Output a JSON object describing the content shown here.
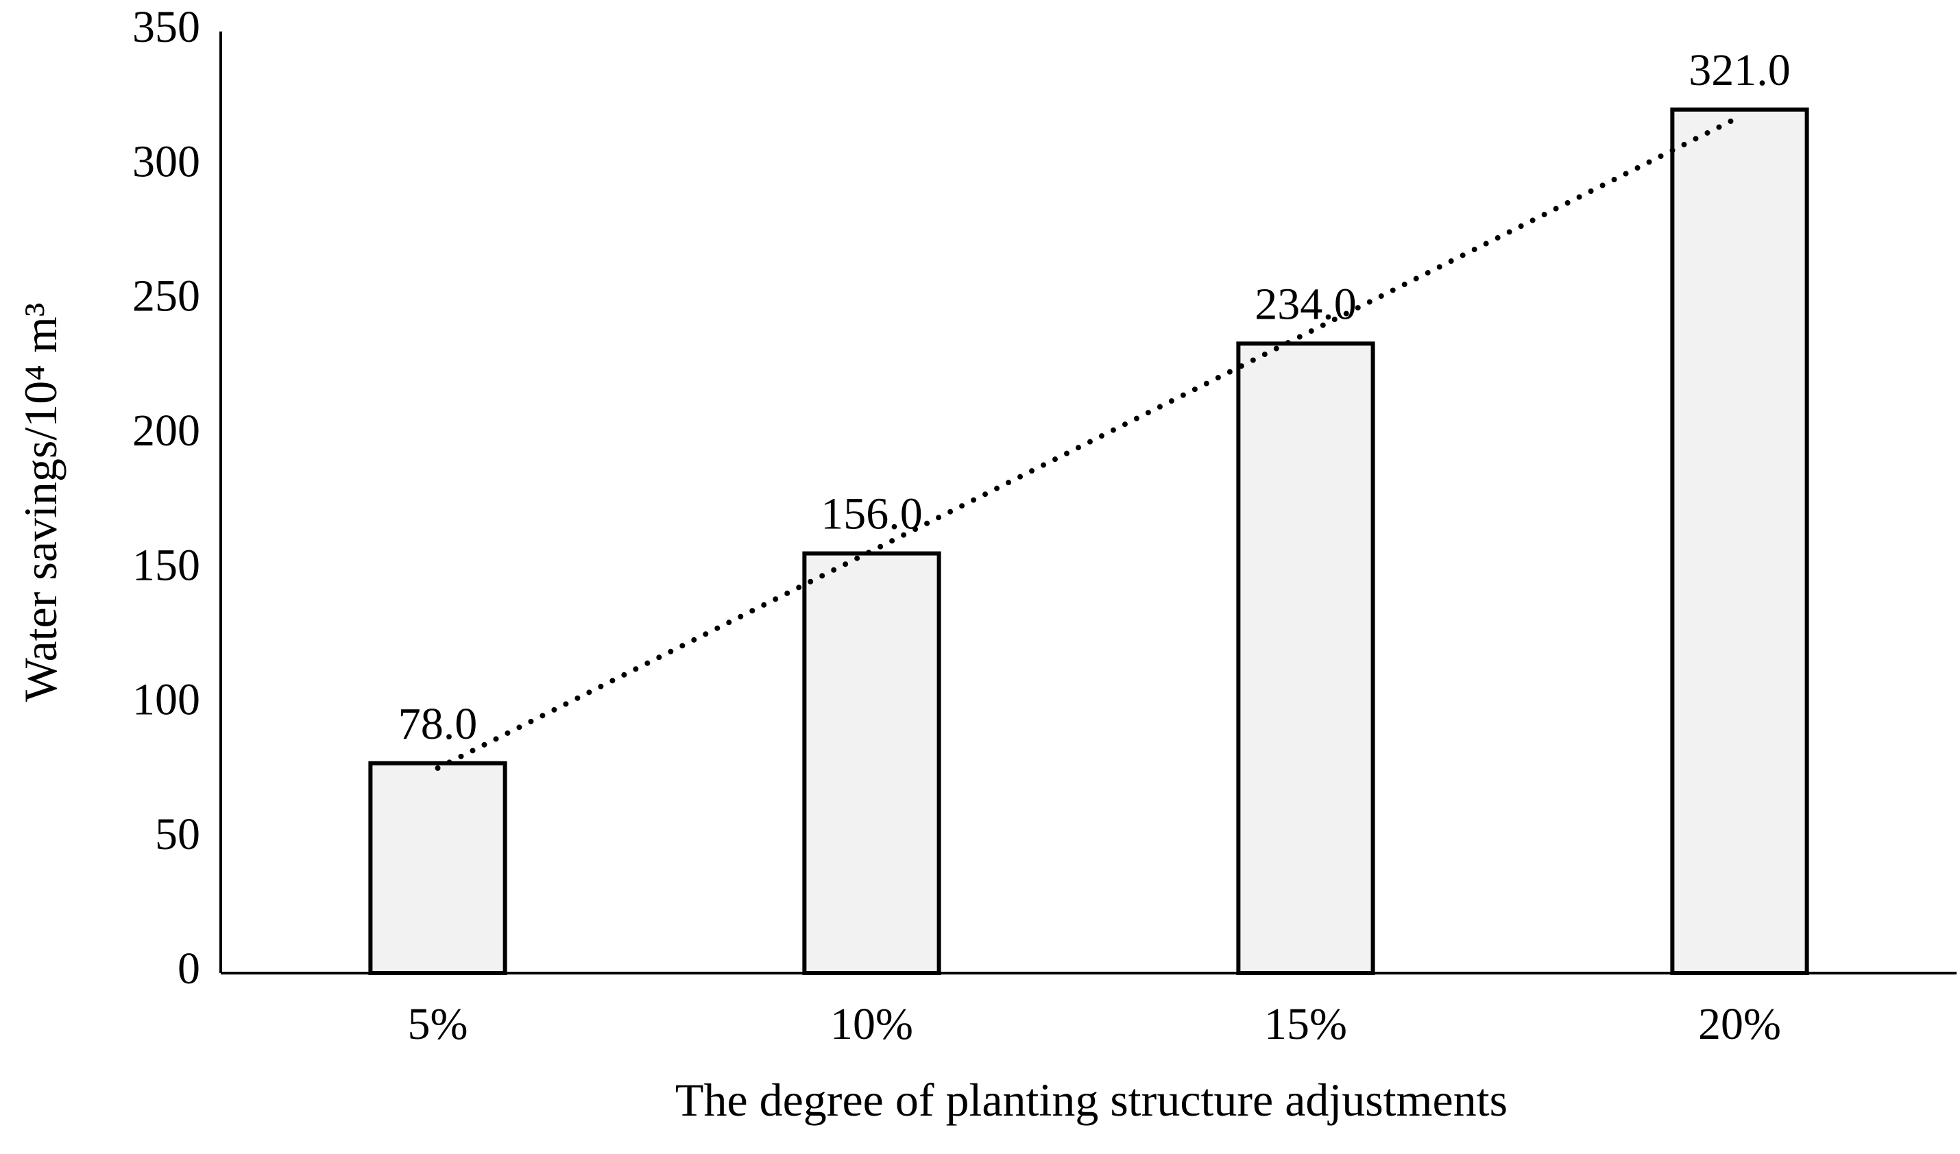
{
  "chart_data": {
    "type": "bar",
    "x_label": "The degree of planting structure adjustments",
    "y_label": "Water savings/10⁴ m³",
    "categories": [
      "5%",
      "10%",
      "15%",
      "20%"
    ],
    "values": [
      78,
      156,
      234,
      321
    ],
    "value_labels": [
      "78.0",
      "156.0",
      "234.0",
      "321.0"
    ],
    "color": "#f2f2f2",
    "edge_color": "#000000",
    "trendline": "linear",
    "ylim": [
      0,
      350
    ],
    "yticks": [
      0,
      50,
      100,
      150,
      200,
      250,
      300,
      350
    ],
    "grid": false
  }
}
